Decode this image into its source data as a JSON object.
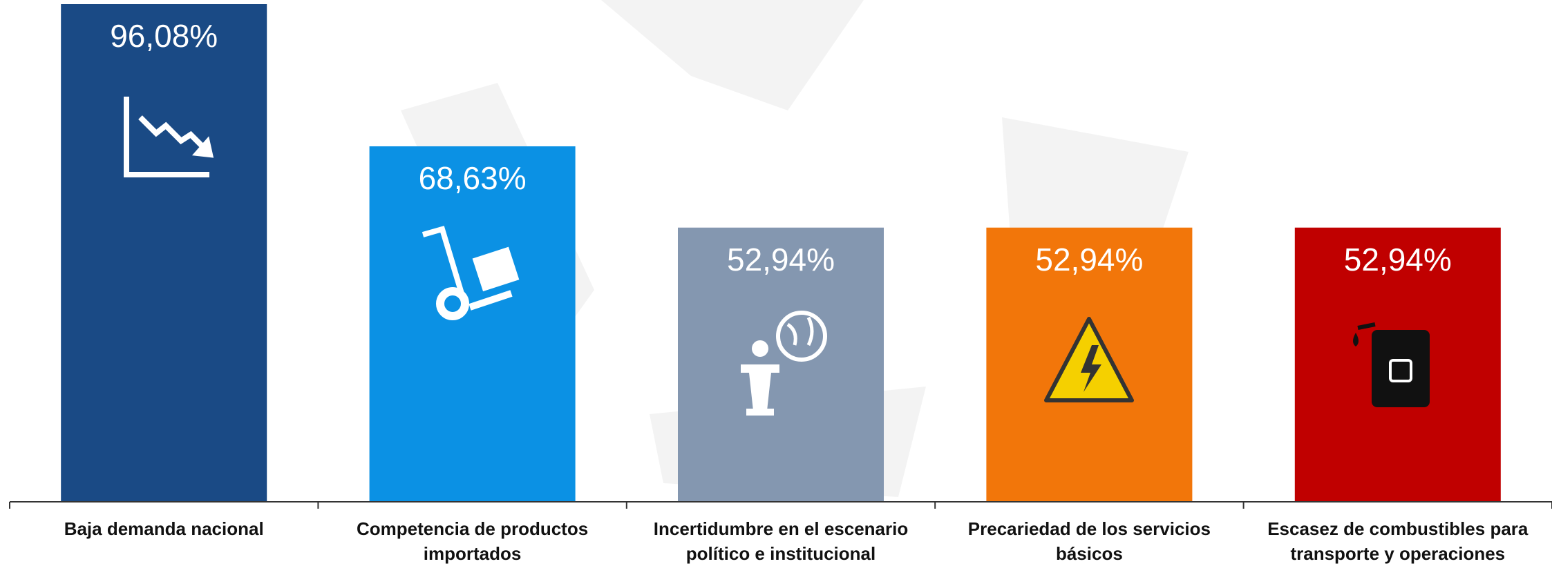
{
  "chart_data": {
    "type": "bar",
    "categories": [
      "Baja demanda nacional",
      "Competencia de productos importados",
      "Incertidumbre en el escenario político e institucional",
      "Precariedad de los servicios básicos",
      "Escasez de combustibles para transporte y operaciones"
    ],
    "values": [
      96.08,
      68.63,
      52.94,
      52.94,
      52.94
    ],
    "value_labels": [
      "96,08%",
      "68,63%",
      "52,94%",
      "52,94%",
      "52,94%"
    ],
    "colors": [
      "#1a4a85",
      "#0b91e4",
      "#8497b0",
      "#f2760a",
      "#c00000"
    ]
  }
}
